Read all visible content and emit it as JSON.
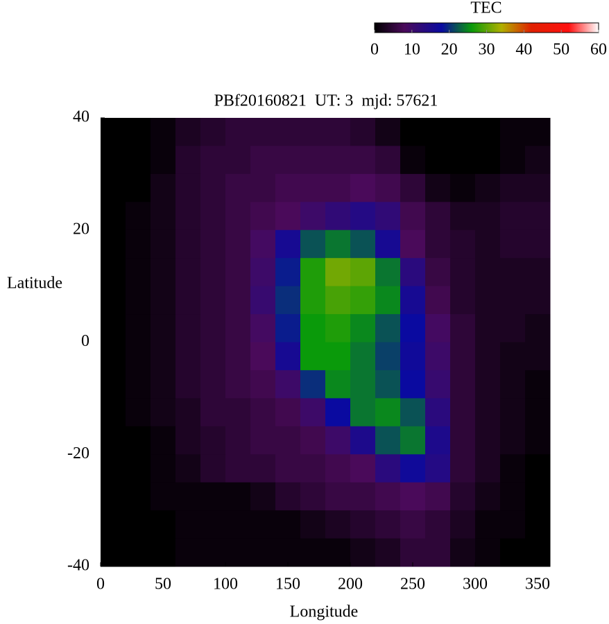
{
  "chart_data": {
    "type": "heatmap",
    "title": "PBf20160821  UT: 3  mjd: 57621",
    "x_label": "Longitude",
    "y_label": "Latitude",
    "xlim": [
      0,
      360
    ],
    "xticks": [
      0,
      50,
      100,
      150,
      200,
      250,
      300,
      350
    ],
    "ylim": [
      -40,
      40
    ],
    "yticks": [
      -40,
      -20,
      0,
      20,
      40
    ],
    "x": [
      10,
      30,
      50,
      70,
      90,
      110,
      130,
      150,
      170,
      190,
      210,
      230,
      250,
      270,
      290,
      310,
      330,
      350
    ],
    "y": [
      37.5,
      32.5,
      27.5,
      22.5,
      17.5,
      12.5,
      7.5,
      2.5,
      -2.5,
      -7.5,
      -12.5,
      -17.5,
      -22.5,
      -27.5,
      -32.5,
      -37.5
    ],
    "z": [
      [
        0,
        0,
        1,
        3,
        4,
        5,
        5,
        5,
        5,
        5,
        4,
        2,
        0,
        0,
        0,
        0,
        1,
        1
      ],
      [
        0,
        0,
        1,
        4,
        5,
        5,
        6,
        6,
        6,
        6,
        6,
        5,
        1,
        0,
        0,
        0,
        1,
        2
      ],
      [
        0,
        0,
        2,
        4,
        5,
        6,
        6,
        7,
        7,
        7,
        8,
        7,
        5,
        2,
        1,
        2,
        3,
        3
      ],
      [
        0,
        1,
        2,
        4,
        5,
        6,
        7,
        8,
        10,
        12,
        14,
        12,
        7,
        5,
        3,
        3,
        4,
        4
      ],
      [
        0,
        1,
        2,
        4,
        5,
        6,
        9,
        16,
        22,
        24,
        22,
        16,
        8,
        5,
        4,
        3,
        4,
        4
      ],
      [
        0,
        1,
        2,
        4,
        5,
        6,
        10,
        19,
        27,
        31,
        30,
        24,
        13,
        6,
        4,
        3,
        3,
        3
      ],
      [
        0,
        1,
        2,
        4,
        5,
        6,
        11,
        20,
        27,
        29,
        28,
        25,
        16,
        7,
        4,
        3,
        3,
        3
      ],
      [
        0,
        1,
        2,
        4,
        5,
        6,
        9,
        19,
        26,
        27,
        25,
        22,
        18,
        9,
        5,
        3,
        3,
        2
      ],
      [
        0,
        1,
        2,
        4,
        5,
        6,
        8,
        16,
        26,
        26,
        24,
        21,
        17,
        10,
        5,
        3,
        2,
        2
      ],
      [
        0,
        1,
        2,
        4,
        5,
        6,
        7,
        10,
        20,
        25,
        24,
        22,
        18,
        11,
        5,
        3,
        2,
        1
      ],
      [
        0,
        1,
        2,
        3,
        5,
        5,
        6,
        7,
        10,
        18,
        24,
        25,
        22,
        13,
        5,
        3,
        2,
        1
      ],
      [
        0,
        0,
        1,
        3,
        4,
        5,
        6,
        6,
        7,
        10,
        15,
        22,
        24,
        15,
        5,
        3,
        2,
        1
      ],
      [
        0,
        0,
        1,
        2,
        4,
        5,
        5,
        6,
        6,
        7,
        8,
        13,
        17,
        14,
        5,
        3,
        1,
        0
      ],
      [
        0,
        0,
        1,
        1,
        1,
        1,
        2,
        4,
        5,
        6,
        6,
        7,
        8,
        7,
        4,
        2,
        1,
        0
      ],
      [
        0,
        0,
        0,
        1,
        1,
        1,
        1,
        1,
        2,
        3,
        4,
        5,
        6,
        5,
        3,
        1,
        1,
        0
      ],
      [
        0,
        0,
        0,
        1,
        1,
        1,
        1,
        1,
        1,
        1,
        2,
        3,
        5,
        5,
        2,
        1,
        0,
        0
      ]
    ],
    "colorbar": {
      "label": "TEC",
      "zlim": [
        0,
        60
      ],
      "zticks": [
        0,
        10,
        20,
        30,
        40,
        50,
        60
      ]
    },
    "colormap": [
      {
        "value": 0,
        "color": "#000000"
      },
      {
        "value": 8,
        "color": "#4a0a5a"
      },
      {
        "value": 18,
        "color": "#0a0aa0"
      },
      {
        "value": 26,
        "color": "#0a9a0a"
      },
      {
        "value": 34,
        "color": "#b0b000"
      },
      {
        "value": 42,
        "color": "#e02000"
      },
      {
        "value": 52,
        "color": "#ff1010"
      },
      {
        "value": 60,
        "color": "#ffffff"
      }
    ]
  }
}
